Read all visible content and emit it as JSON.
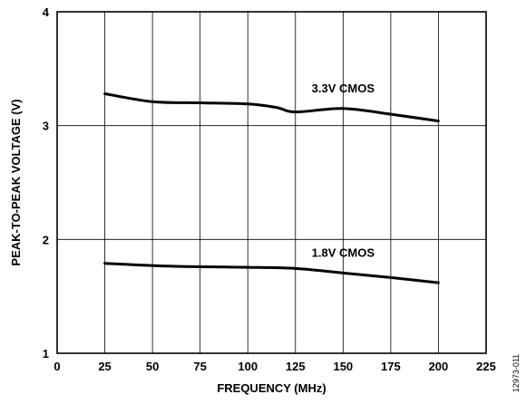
{
  "chart_data": {
    "type": "line",
    "xlabel": "FREQUENCY (MHz)",
    "ylabel": "PEAK-TO-PEAK VOLTAGE (V)",
    "xlim": [
      0,
      225
    ],
    "ylim": [
      1,
      4
    ],
    "x_ticks": [
      0,
      25,
      50,
      75,
      100,
      125,
      150,
      175,
      200,
      225
    ],
    "y_ticks": [
      1,
      2,
      3,
      4
    ],
    "grid": true,
    "series": [
      {
        "name": "3.3V CMOS",
        "x": [
          25,
          50,
          75,
          100,
          115,
          125,
          150,
          175,
          200
        ],
        "y": [
          3.28,
          3.21,
          3.2,
          3.19,
          3.16,
          3.12,
          3.15,
          3.1,
          3.04
        ]
      },
      {
        "name": "1.8V CMOS",
        "x": [
          25,
          50,
          75,
          100,
          125,
          150,
          175,
          200
        ],
        "y": [
          1.79,
          1.77,
          1.76,
          1.755,
          1.745,
          1.705,
          1.665,
          1.62
        ]
      }
    ],
    "figure_id": "12973-011"
  }
}
